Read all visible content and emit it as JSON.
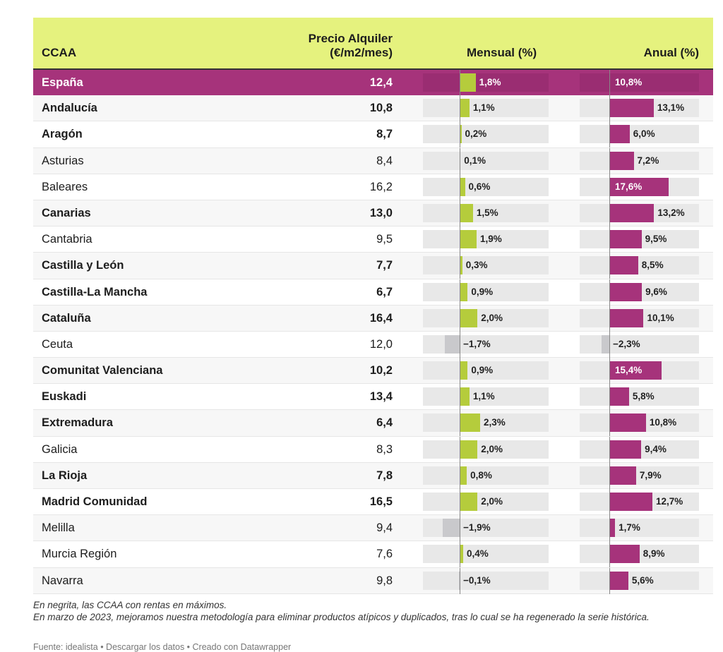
{
  "header": {
    "ccaa": "CCAA",
    "precio_line1": "Precio Alquiler",
    "precio_line2": "(€/m2/mes)",
    "mensual": "Mensual (%)",
    "anual": "Anual (%)"
  },
  "colors": {
    "header_bg": "#e5f27e",
    "highlight_row": "#a6337b",
    "mensual_bar": "#b5cc3c",
    "anual_bar": "#a6337b",
    "negative_bar": "#c9c9cc",
    "track": "#e8e8e8"
  },
  "chart_data": {
    "type": "table",
    "columns": [
      "CCAA",
      "Precio Alquiler (€/m2/mes)",
      "Mensual (%)",
      "Anual (%)"
    ],
    "rows": [
      {
        "name": "España",
        "price": "12,4",
        "mensual": 1.8,
        "mensual_label": "1,8%",
        "anual": 10.8,
        "anual_label": "10,8%",
        "bold": true,
        "highlight": true
      },
      {
        "name": "Andalucía",
        "price": "10,8",
        "mensual": 1.1,
        "mensual_label": "1,1%",
        "anual": 13.1,
        "anual_label": "13,1%",
        "bold": true
      },
      {
        "name": "Aragón",
        "price": "8,7",
        "mensual": 0.2,
        "mensual_label": "0,2%",
        "anual": 6.0,
        "anual_label": "6,0%",
        "bold": true
      },
      {
        "name": "Asturias",
        "price": "8,4",
        "mensual": 0.1,
        "mensual_label": "0,1%",
        "anual": 7.2,
        "anual_label": "7,2%",
        "bold": false
      },
      {
        "name": "Baleares",
        "price": "16,2",
        "mensual": 0.6,
        "mensual_label": "0,6%",
        "anual": 17.6,
        "anual_label": "17,6%",
        "bold": false,
        "anual_inside": true
      },
      {
        "name": "Canarias",
        "price": "13,0",
        "mensual": 1.5,
        "mensual_label": "1,5%",
        "anual": 13.2,
        "anual_label": "13,2%",
        "bold": true
      },
      {
        "name": "Cantabria",
        "price": "9,5",
        "mensual": 1.9,
        "mensual_label": "1,9%",
        "anual": 9.5,
        "anual_label": "9,5%",
        "bold": false
      },
      {
        "name": "Castilla y León",
        "price": "7,7",
        "mensual": 0.3,
        "mensual_label": "0,3%",
        "anual": 8.5,
        "anual_label": "8,5%",
        "bold": true
      },
      {
        "name": "Castilla-La Mancha",
        "price": "6,7",
        "mensual": 0.9,
        "mensual_label": "0,9%",
        "anual": 9.6,
        "anual_label": "9,6%",
        "bold": true
      },
      {
        "name": "Cataluña",
        "price": "16,4",
        "mensual": 2.0,
        "mensual_label": "2,0%",
        "anual": 10.1,
        "anual_label": "10,1%",
        "bold": true
      },
      {
        "name": "Ceuta",
        "price": "12,0",
        "mensual": -1.7,
        "mensual_label": "-1,7%",
        "anual": -2.3,
        "anual_label": "-2,3%",
        "bold": false
      },
      {
        "name": "Comunitat Valenciana",
        "price": "10,2",
        "mensual": 0.9,
        "mensual_label": "0,9%",
        "anual": 15.4,
        "anual_label": "15,4%",
        "bold": true,
        "anual_inside": true
      },
      {
        "name": "Euskadi",
        "price": "13,4",
        "mensual": 1.1,
        "mensual_label": "1,1%",
        "anual": 5.8,
        "anual_label": "5,8%",
        "bold": true
      },
      {
        "name": "Extremadura",
        "price": "6,4",
        "mensual": 2.3,
        "mensual_label": "2,3%",
        "anual": 10.8,
        "anual_label": "10,8%",
        "bold": true
      },
      {
        "name": "Galicia",
        "price": "8,3",
        "mensual": 2.0,
        "mensual_label": "2,0%",
        "anual": 9.4,
        "anual_label": "9,4%",
        "bold": false
      },
      {
        "name": "La Rioja",
        "price": "7,8",
        "mensual": 0.8,
        "mensual_label": "0,8%",
        "anual": 7.9,
        "anual_label": "7,9%",
        "bold": true
      },
      {
        "name": "Madrid Comunidad",
        "price": "16,5",
        "mensual": 2.0,
        "mensual_label": "2,0%",
        "anual": 12.7,
        "anual_label": "12,7%",
        "bold": true
      },
      {
        "name": "Melilla",
        "price": "9,4",
        "mensual": -1.9,
        "mensual_label": "-1,9%",
        "anual": 1.7,
        "anual_label": "1,7%",
        "bold": false
      },
      {
        "name": "Murcia Región",
        "price": "7,6",
        "mensual": 0.4,
        "mensual_label": "0,4%",
        "anual": 8.9,
        "anual_label": "8,9%",
        "bold": false
      },
      {
        "name": "Navarra",
        "price": "9,8",
        "mensual": -0.1,
        "mensual_label": "-0,1%",
        "anual": 5.6,
        "anual_label": "5,6%",
        "bold": false
      }
    ]
  },
  "notes": {
    "line1": "En negrita, las CCAA con rentas en máximos.",
    "line2": "En marzo de 2023, mejoramos nuestra metodología para eliminar productos atípicos y duplicados, tras lo cual se ha regenerado la serie histórica."
  },
  "source": {
    "text": "Fuente: idealista • Descargar los datos • Creado con Datawrapper"
  }
}
